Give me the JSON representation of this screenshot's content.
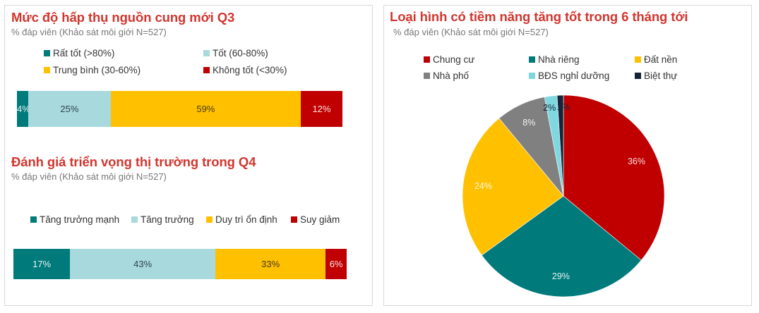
{
  "colors": {
    "teal": "#007a7a",
    "light_teal": "#a8d9dd",
    "yellow": "#ffc000",
    "red": "#c00000",
    "gray": "#808080",
    "cyan": "#7fd8e0",
    "navy": "#14253a",
    "title_red": "#d1362f"
  },
  "panel1": {
    "title": "Mức độ hấp thụ nguồn cung mới Q3",
    "subtitle": "% đáp viên (Khảo sát môi giới N=527)",
    "legend": [
      {
        "label": "Rất tốt (>80%)",
        "color": "#007a7a"
      },
      {
        "label": "Tốt (60-80%)",
        "color": "#a8d9dd"
      },
      {
        "label": "Trung bình (30-60%)",
        "color": "#ffc000"
      },
      {
        "label": "Không tốt (<30%)",
        "color": "#c00000"
      }
    ],
    "segments": [
      {
        "label": "4%",
        "value": 4
      },
      {
        "label": "25%",
        "value": 25
      },
      {
        "label": "59%",
        "value": 59
      },
      {
        "label": "12%",
        "value": 12
      }
    ]
  },
  "panel2": {
    "title": "Đánh giá triển vọng thị trường trong Q4",
    "subtitle": "% đáp viên (Khảo sát môi giới N=527)",
    "legend": [
      {
        "label": "Tăng trưởng mạnh",
        "color": "#007a7a"
      },
      {
        "label": "Tăng trưởng",
        "color": "#a8d9dd"
      },
      {
        "label": "Duy trì ổn định",
        "color": "#ffc000"
      },
      {
        "label": "Suy giảm",
        "color": "#c00000"
      }
    ],
    "segments": [
      {
        "label": "17%",
        "value": 17
      },
      {
        "label": "43%",
        "value": 43
      },
      {
        "label": "33%",
        "value": 33
      },
      {
        "label": "6%",
        "value": 6
      }
    ]
  },
  "panel3": {
    "title": "Loại hình có tiềm năng tăng tốt trong 6 tháng tới",
    "subtitle": "% đáp viên (Khảo sát môi giới N=527)",
    "legend": [
      {
        "label": "Chung cư",
        "color": "#c00000"
      },
      {
        "label": "Nhà riêng",
        "color": "#007a7a"
      },
      {
        "label": "Đất nền",
        "color": "#ffc000"
      },
      {
        "label": "Nhà phố",
        "color": "#808080"
      },
      {
        "label": "BĐS nghỉ dưỡng",
        "color": "#7fd8e0"
      },
      {
        "label": "Biệt thự",
        "color": "#14253a"
      }
    ],
    "slices": [
      {
        "label": "36%",
        "value": 36
      },
      {
        "label": "29%",
        "value": 29
      },
      {
        "label": "24%",
        "value": 24
      },
      {
        "label": "8%",
        "value": 8
      },
      {
        "label": "2%",
        "value": 2
      },
      {
        "label": "1%",
        "value": 1
      }
    ]
  },
  "chart_data": [
    {
      "type": "bar",
      "orientation": "horizontal-stacked-100",
      "title": "Mức độ hấp thụ nguồn cung mới Q3",
      "subtitle": "% đáp viên (Khảo sát môi giới N=527)",
      "categories": [
        ""
      ],
      "series": [
        {
          "name": "Rất tốt (>80%)",
          "values": [
            4
          ]
        },
        {
          "name": "Tốt (60-80%)",
          "values": [
            25
          ]
        },
        {
          "name": "Trung bình (30-60%)",
          "values": [
            59
          ]
        },
        {
          "name": "Không tốt (<30%)",
          "values": [
            12
          ]
        }
      ],
      "legend_position": "top",
      "grid": false
    },
    {
      "type": "bar",
      "orientation": "horizontal-stacked-100",
      "title": "Đánh giá triển vọng thị trường trong Q4",
      "subtitle": "% đáp viên (Khảo sát môi giới N=527)",
      "categories": [
        ""
      ],
      "series": [
        {
          "name": "Tăng trưởng mạnh",
          "values": [
            17
          ]
        },
        {
          "name": "Tăng trưởng",
          "values": [
            43
          ]
        },
        {
          "name": "Duy trì ổn định",
          "values": [
            33
          ]
        },
        {
          "name": "Suy giảm",
          "values": [
            6
          ]
        }
      ],
      "legend_position": "top",
      "grid": false
    },
    {
      "type": "pie",
      "title": "Loại hình có tiềm năng tăng tốt trong 6 tháng tới",
      "subtitle": "% đáp viên (Khảo sát môi giới N=527)",
      "categories": [
        "Chung cư",
        "Nhà riêng",
        "Đất nền",
        "Nhà phố",
        "BĐS nghỉ dưỡng",
        "Biệt thự"
      ],
      "values": [
        36,
        29,
        24,
        8,
        2,
        1
      ],
      "legend_position": "top"
    }
  ]
}
